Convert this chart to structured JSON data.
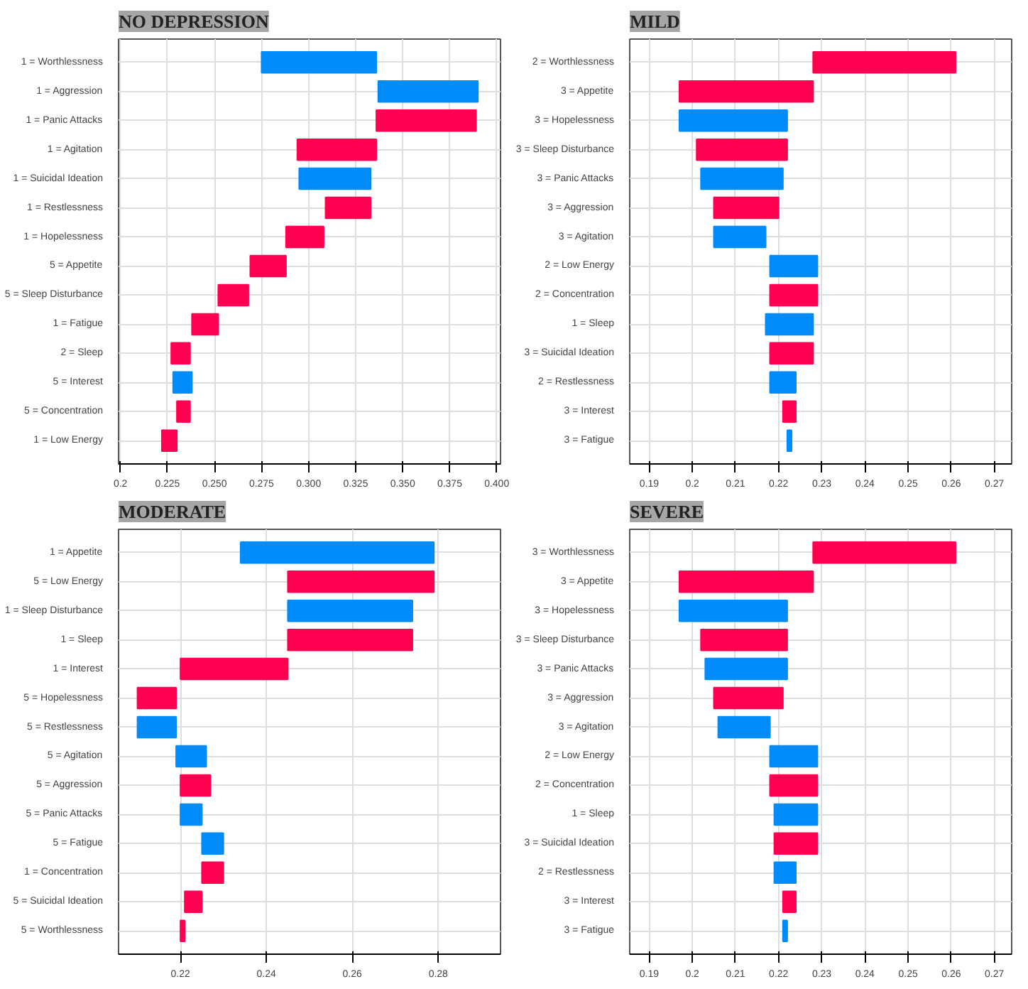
{
  "chart_data": [
    {
      "type": "bar",
      "orientation": "horizontal",
      "title": "NO DEPRESSION",
      "grid": true,
      "categories": [
        "1 = Worthlessness",
        "1 = Aggression",
        "1 = Panic Attacks",
        "1 = Agitation",
        "1 = Suicidal Ideation",
        "1 = Restlessness",
        "1 = Hopelessness",
        "5 = Appetite",
        "5 = Sleep Disturbance",
        "1 = Fatigue",
        "2 = Sleep",
        "5 = Interest",
        "5 = Concentration",
        "1 = Low Energy"
      ],
      "base": [
        0.336,
        0.39,
        0.336,
        0.294,
        0.333,
        0.309,
        0.288,
        0.269,
        0.252,
        0.238,
        0.227,
        0.238,
        0.23,
        0.222
      ],
      "values": [
        -0.061,
        -0.053,
        0.053,
        0.042,
        -0.038,
        0.024,
        0.02,
        0.019,
        0.016,
        0.014,
        0.01,
        -0.01,
        0.007,
        0.008
      ],
      "colors": [
        "#008bfb",
        "#008bfb",
        "#ff0051",
        "#ff0051",
        "#008bfb",
        "#ff0051",
        "#ff0051",
        "#ff0051",
        "#ff0051",
        "#ff0051",
        "#ff0051",
        "#008bfb",
        "#ff0051",
        "#ff0051"
      ],
      "xlim": [
        0.199,
        0.402
      ],
      "xticks": [
        0.2,
        {
          "value": 0.225,
          "label": "0.225"
        },
        {
          "value": 0.25,
          "label": "0.250"
        },
        {
          "value": 0.275,
          "label": "0.275"
        },
        {
          "value": 0.3,
          "label": "0.300"
        },
        {
          "value": 0.325,
          "label": "0.325"
        },
        {
          "value": 0.35,
          "label": "0.350"
        },
        {
          "value": 0.375,
          "label": "0.375"
        },
        {
          "value": 0.4,
          "label": "0.400"
        }
      ]
    },
    {
      "type": "bar",
      "orientation": "horizontal",
      "title": "MILD",
      "grid": true,
      "categories": [
        "2 = Worthlessness",
        "3 = Appetite",
        "3 = Hopelessness",
        "3 = Sleep Disturbance",
        "3 = Panic Attacks",
        "3 = Aggression",
        "3 = Agitation",
        "2 = Low Energy",
        "2 = Concentration",
        "1 = Sleep",
        "3 = Suicidal Ideation",
        "2 = Restlessness",
        "3 = Interest",
        "3 = Fatigue"
      ],
      "base": [
        0.228,
        0.197,
        0.222,
        0.201,
        0.221,
        0.205,
        0.217,
        0.229,
        0.218,
        0.228,
        0.218,
        0.224,
        0.221,
        0.223
      ],
      "values": [
        0.033,
        0.031,
        -0.025,
        0.021,
        -0.019,
        0.015,
        -0.012,
        -0.011,
        0.011,
        -0.011,
        0.01,
        -0.006,
        0.003,
        -0.001
      ],
      "colors": [
        "#ff0051",
        "#ff0051",
        "#008bfb",
        "#ff0051",
        "#008bfb",
        "#ff0051",
        "#008bfb",
        "#008bfb",
        "#ff0051",
        "#008bfb",
        "#ff0051",
        "#008bfb",
        "#ff0051",
        "#008bfb"
      ],
      "xlim": [
        0.1855,
        0.274
      ],
      "xticks": [
        0.19,
        0.2,
        0.21,
        0.22,
        0.23,
        0.24,
        0.25,
        0.26,
        0.27
      ]
    },
    {
      "type": "bar",
      "orientation": "horizontal",
      "title": "MODERATE",
      "grid": true,
      "categories": [
        "1 = Appetite",
        "5 = Low Energy",
        "1 = Sleep Disturbance",
        "1 = Sleep",
        "1 = Interest",
        "5 = Hopelessness",
        "5 = Restlessness",
        "5 = Agitation",
        "5 = Aggression",
        "5 = Panic Attacks",
        "5 = Fatigue",
        "1 = Concentration",
        "5 = Suicidal Ideation",
        "5 = Worthlessness"
      ],
      "base": [
        0.279,
        0.245,
        0.274,
        0.245,
        0.22,
        0.21,
        0.219,
        0.226,
        0.22,
        0.225,
        0.23,
        0.225,
        0.221,
        0.22
      ],
      "values": [
        -0.045,
        0.034,
        -0.029,
        0.029,
        0.025,
        0.009,
        -0.009,
        -0.007,
        0.007,
        -0.005,
        -0.005,
        0.005,
        0.004,
        0.001
      ],
      "colors": [
        "#008bfb",
        "#ff0051",
        "#008bfb",
        "#ff0051",
        "#ff0051",
        "#ff0051",
        "#008bfb",
        "#008bfb",
        "#ff0051",
        "#008bfb",
        "#008bfb",
        "#ff0051",
        "#ff0051",
        "#ff0051"
      ],
      "xlim": [
        0.2056,
        0.2945
      ],
      "xticks": [
        0.22,
        0.24,
        0.26,
        0.28
      ]
    },
    {
      "type": "bar",
      "orientation": "horizontal",
      "title": "SEVERE",
      "grid": true,
      "categories": [
        "3 = Worthlessness",
        "3 = Appetite",
        "3 = Hopelessness",
        "3 = Sleep Disturbance",
        "3 = Panic Attacks",
        "3 = Aggression",
        "3 = Agitation",
        "2 = Low Energy",
        "2 = Concentration",
        "1 = Sleep",
        "3 = Suicidal Ideation",
        "2 = Restlessness",
        "3 = Interest",
        "3 = Fatigue"
      ],
      "base": [
        0.228,
        0.197,
        0.222,
        0.202,
        0.222,
        0.205,
        0.218,
        0.229,
        0.218,
        0.229,
        0.219,
        0.224,
        0.221,
        0.222
      ],
      "values": [
        0.033,
        0.031,
        -0.025,
        0.02,
        -0.019,
        0.016,
        -0.012,
        -0.011,
        0.011,
        -0.01,
        0.01,
        -0.005,
        0.003,
        -0.001
      ],
      "colors": [
        "#ff0051",
        "#ff0051",
        "#008bfb",
        "#ff0051",
        "#008bfb",
        "#ff0051",
        "#008bfb",
        "#008bfb",
        "#ff0051",
        "#008bfb",
        "#ff0051",
        "#008bfb",
        "#ff0051",
        "#008bfb"
      ],
      "xlim": [
        0.1855,
        0.274
      ],
      "xticks": [
        0.19,
        0.2,
        0.21,
        0.22,
        0.23,
        0.24,
        0.25,
        0.26,
        0.27
      ]
    }
  ]
}
